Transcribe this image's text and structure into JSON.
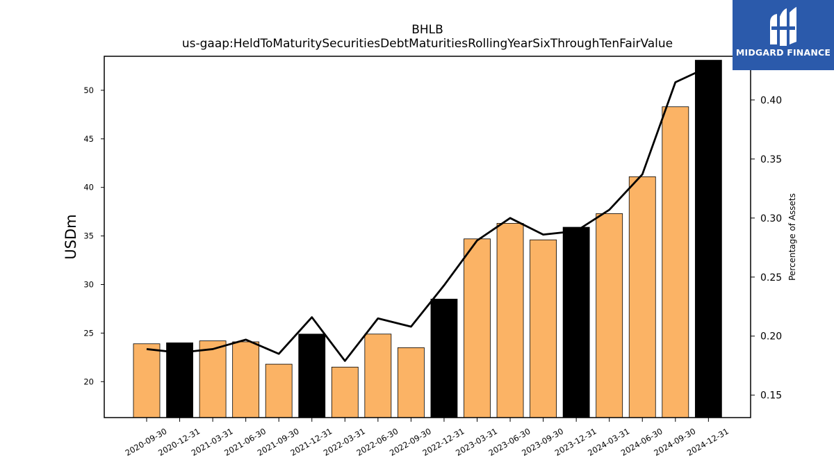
{
  "chart_data": {
    "type": "bar",
    "title_line1": "BHLB",
    "title_line2": "us-gaap:HeldToMaturitySecuritiesDebtMaturitiesRollingYearSixThroughTenFairValue",
    "ylabel_left": "USDm",
    "ylabel_right": "Percentage of Assets",
    "categories": [
      "2020-09-30",
      "2020-12-31",
      "2021-03-31",
      "2021-06-30",
      "2021-09-30",
      "2021-12-31",
      "2022-03-31",
      "2022-06-30",
      "2022-09-30",
      "2022-12-31",
      "2023-03-31",
      "2023-06-30",
      "2023-09-30",
      "2023-12-31",
      "2024-03-31",
      "2024-06-30",
      "2024-09-30",
      "2024-12-31"
    ],
    "series": [
      {
        "axis": "left",
        "kind": "bar",
        "values": [
          23.9,
          24.0,
          24.2,
          24.1,
          21.8,
          24.9,
          21.5,
          24.9,
          23.5,
          28.5,
          34.7,
          36.3,
          34.6,
          35.9,
          37.3,
          41.1,
          48.3,
          53.1
        ]
      },
      {
        "axis": "right",
        "kind": "line",
        "values": [
          0.189,
          0.186,
          0.189,
          0.197,
          0.185,
          0.216,
          0.179,
          0.215,
          0.208,
          0.243,
          0.281,
          0.3,
          0.286,
          0.289,
          0.307,
          0.337,
          0.415,
          0.428
        ]
      }
    ],
    "highlight_categories": [
      "2020-12-31",
      "2021-12-31",
      "2022-12-31",
      "2023-12-31",
      "2024-12-31"
    ],
    "ylim_left": [
      16.3,
      53.5
    ],
    "ylim_right": [
      0.131,
      0.437
    ],
    "yticks_left": [
      20,
      25,
      30,
      35,
      40,
      45,
      50
    ],
    "yticks_right": [
      0.15,
      0.2,
      0.25,
      0.3,
      0.35,
      0.4
    ],
    "colors": {
      "bar": "#fbb365",
      "bar_highlight": "#000000",
      "line": "#000000",
      "edge": "#000000"
    },
    "grid": false
  },
  "logo": {
    "text": "MIDGARD FINANCE",
    "icon": "midgard-logo-icon",
    "background": "#2b5aab"
  }
}
